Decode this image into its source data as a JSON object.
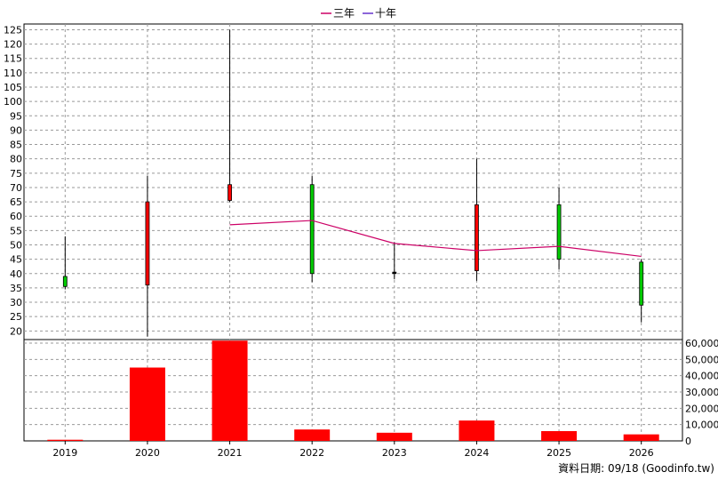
{
  "chart_data": {
    "type": "candlestick",
    "legend": {
      "items": [
        {
          "label": "三年",
          "color": "#cc0066"
        },
        {
          "label": "十年",
          "color": "#6633cc"
        }
      ]
    },
    "source_note": "資料日期: 09/18  (Goodinfo.tw)",
    "years": [
      "2019",
      "2020",
      "2021",
      "2022",
      "2023",
      "2024",
      "2025",
      "2026"
    ],
    "price_axis": {
      "ylim": [
        17,
        127
      ],
      "ticks": [
        20,
        25,
        30,
        35,
        40,
        45,
        50,
        55,
        60,
        65,
        70,
        75,
        80,
        85,
        90,
        95,
        100,
        105,
        110,
        115,
        120,
        125
      ]
    },
    "volume_axis": {
      "ylim": [
        0,
        60000
      ],
      "ticks": [
        0,
        10000,
        20000,
        30000,
        40000,
        50000,
        60000
      ],
      "tick_labels": [
        "0",
        "10,000",
        "20,000",
        "30,000",
        "40,000",
        "50,000",
        "60,000"
      ]
    },
    "candles": [
      {
        "year": "2019",
        "open": 35.5,
        "close": 39,
        "high": 53,
        "low": 34.5,
        "color": "#00cc00"
      },
      {
        "year": "2020",
        "open": 36,
        "close": 65,
        "high": 74,
        "low": 18,
        "color": "#ff0000"
      },
      {
        "year": "2021",
        "open": 65.5,
        "close": 71,
        "high": 125,
        "low": 65,
        "color": "#ff0000"
      },
      {
        "year": "2022",
        "open": 71,
        "close": 40,
        "high": 74,
        "low": 37,
        "color": "#00cc00"
      },
      {
        "year": "2023",
        "open": 40.5,
        "close": 40,
        "high": 51,
        "low": 38,
        "color": "#000000"
      },
      {
        "year": "2024",
        "open": 41,
        "close": 64,
        "high": 80,
        "low": 37.5,
        "color": "#ff0000"
      },
      {
        "year": "2025",
        "open": 64,
        "close": 45,
        "high": 70,
        "low": 41.5,
        "color": "#00cc00"
      },
      {
        "year": "2026",
        "open": 44,
        "close": 29,
        "high": 45,
        "low": 23,
        "color": "#00cc00"
      }
    ],
    "series": [
      {
        "name": "三年",
        "color": "#cc0066",
        "points": [
          [
            "2021",
            57
          ],
          [
            "2022",
            58.5
          ],
          [
            "2023",
            50.5
          ],
          [
            "2024",
            48
          ],
          [
            "2025",
            49.5
          ],
          [
            "2026",
            46
          ]
        ]
      },
      {
        "name": "十年",
        "color": "#6633cc",
        "points": []
      }
    ],
    "volume": {
      "color": "#ff0000",
      "values": [
        [
          "2019",
          700
        ],
        [
          "2020",
          45000
        ],
        [
          "2021",
          61500
        ],
        [
          "2022",
          7000
        ],
        [
          "2023",
          5000
        ],
        [
          "2024",
          12500
        ],
        [
          "2025",
          6000
        ],
        [
          "2026",
          4000
        ]
      ]
    },
    "grid": true
  }
}
